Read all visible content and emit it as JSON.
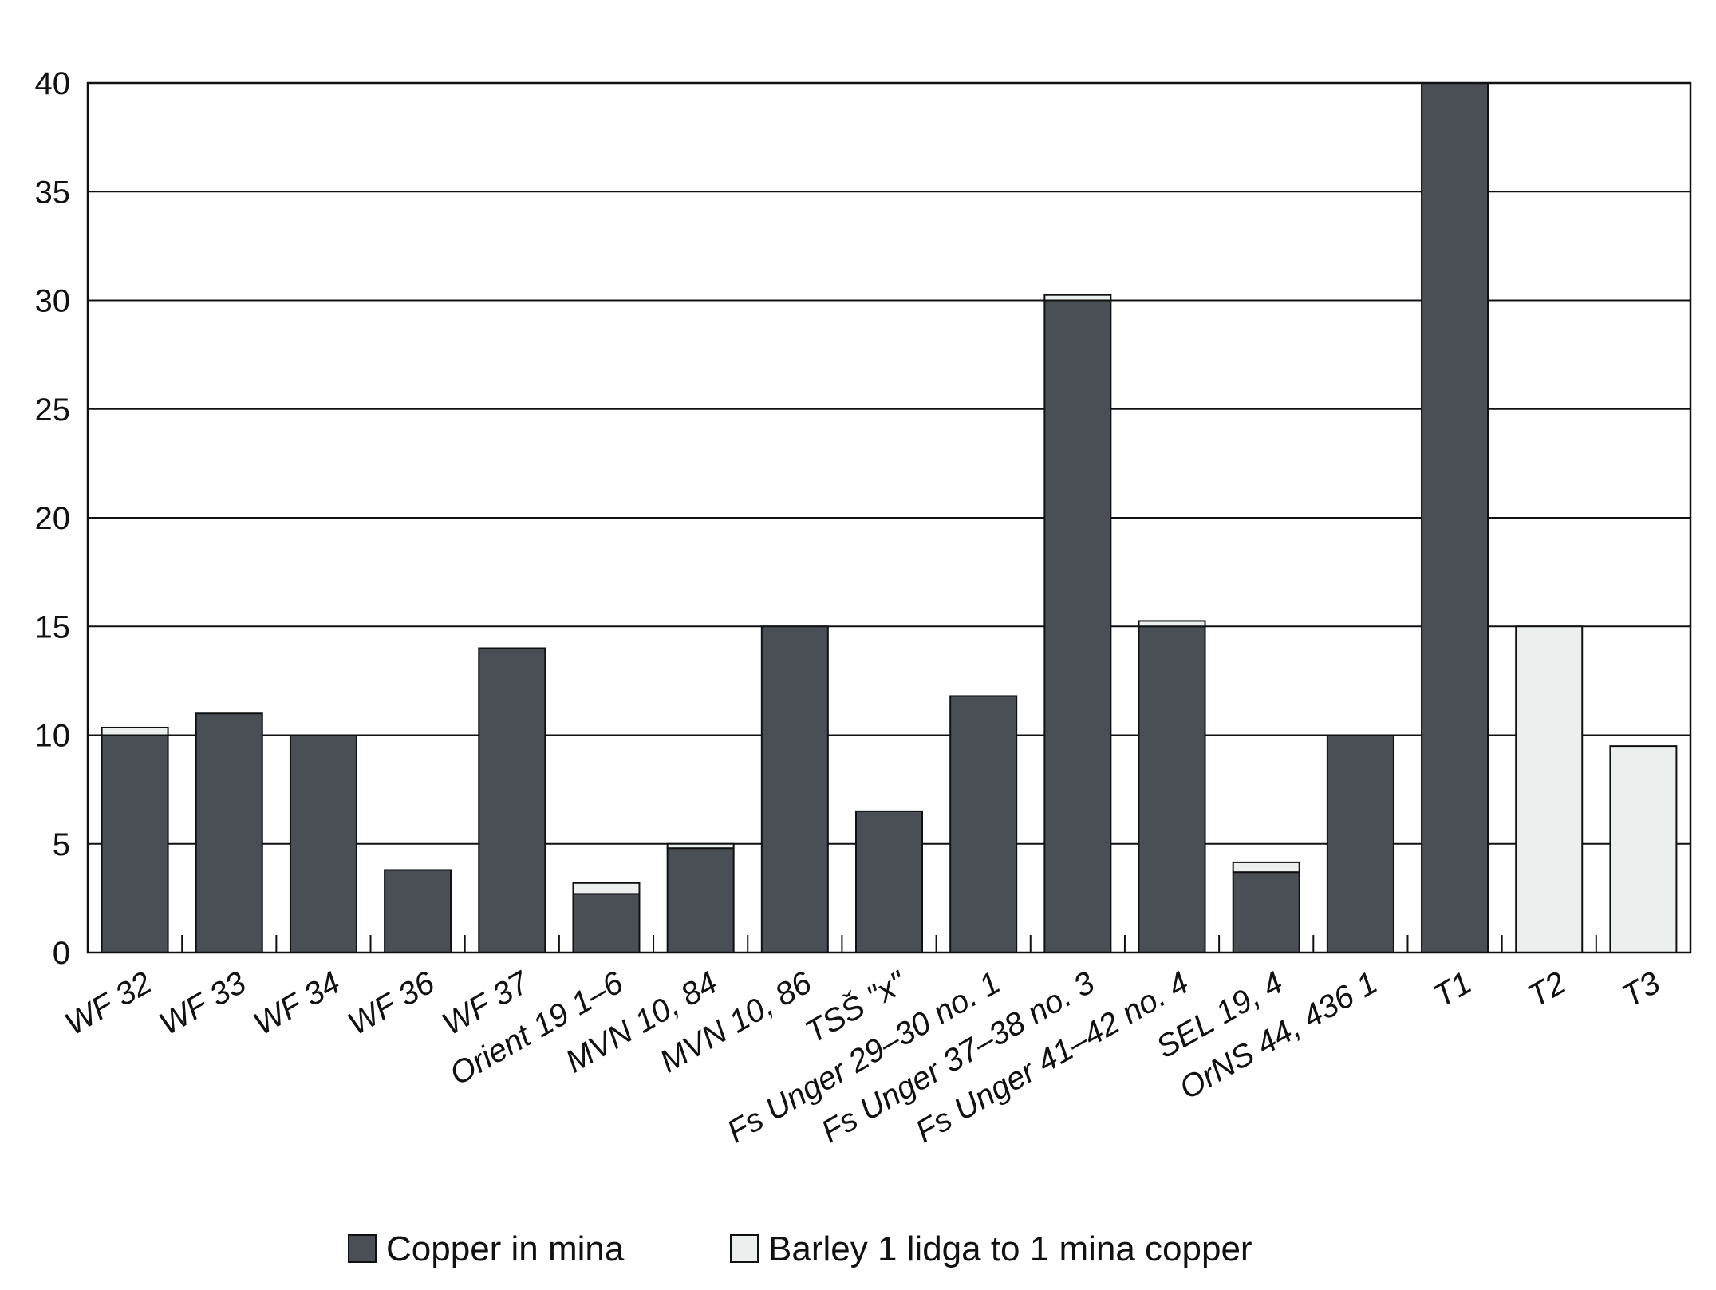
{
  "chart_data": {
    "type": "bar",
    "stacked": true,
    "ylim": [
      0,
      40
    ],
    "yticks": [
      0,
      5,
      10,
      15,
      20,
      25,
      30,
      35,
      40
    ],
    "grid": true,
    "legend_position": "bottom",
    "categories": [
      "WF 32",
      "WF 33",
      "WF 34",
      "WF 36",
      "WF 37",
      "Orient 19 1–6",
      "MVN 10, 84",
      "MVN 10, 86",
      "TSŠ \"x\"",
      "Fs Unger 29–30 no. 1",
      "Fs Unger 37–38 no. 3",
      "Fs Unger 41–42 no. 4",
      "SEL 19, 4",
      "OrNS 44, 436 1",
      "T1",
      "T2",
      "T3"
    ],
    "series": [
      {
        "name": "Copper in mina",
        "color": "#4a4f56",
        "values": [
          10,
          11,
          10,
          3.8,
          14,
          2.7,
          4.8,
          15,
          6.5,
          11.8,
          30,
          15,
          3.7,
          10,
          40,
          0,
          0
        ]
      },
      {
        "name": "Barley 1 lidga to 1 mina copper",
        "color": "#ebf0ef",
        "values": [
          0.35,
          0,
          0,
          0,
          0,
          0.5,
          0.2,
          0,
          0,
          0,
          0.25,
          0.25,
          0.45,
          0,
          0,
          15,
          9.5
        ]
      }
    ]
  }
}
